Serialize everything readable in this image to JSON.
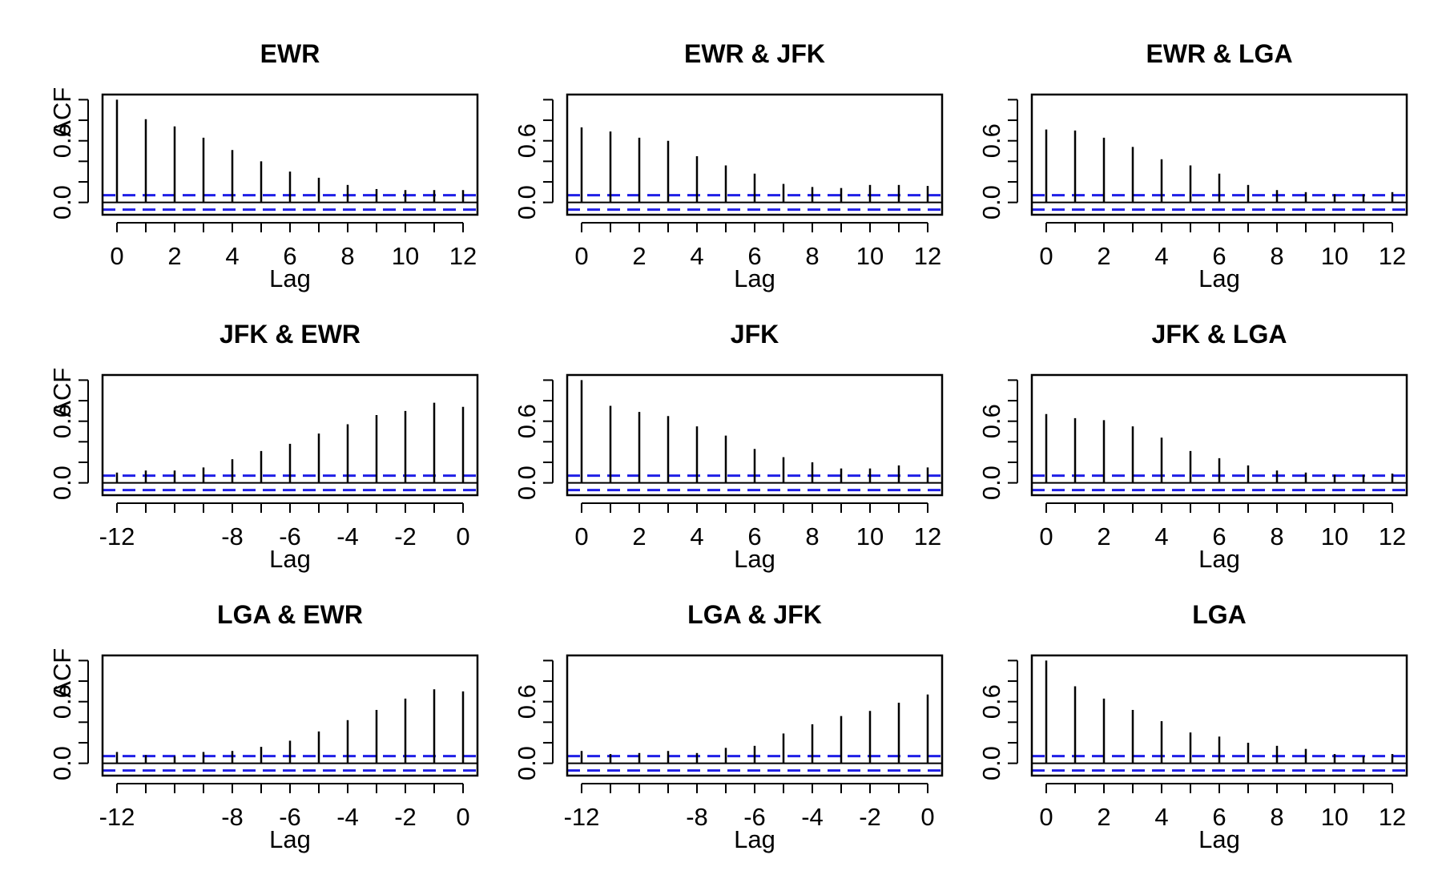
{
  "chart_data": [
    {
      "type": "bar",
      "title": "EWR",
      "xlabel": "Lag",
      "ylabel": "ACF",
      "x": [
        0,
        1,
        2,
        3,
        4,
        5,
        6,
        7,
        8,
        9,
        10,
        11,
        12
      ],
      "values": [
        1.0,
        0.81,
        0.74,
        0.63,
        0.51,
        0.4,
        0.3,
        0.24,
        0.17,
        0.13,
        0.12,
        0.12,
        0.12
      ],
      "xticks": [
        "0",
        "2",
        "4",
        "6",
        "8",
        "10",
        "12"
      ],
      "xtick_values": [
        0,
        2,
        4,
        6,
        8,
        10,
        12
      ],
      "xlim": [
        -0.5,
        12.5
      ],
      "yticks": [
        "0.0",
        "0.6"
      ],
      "ylim": [
        -0.12,
        1.05
      ],
      "ci": 0.07
    },
    {
      "type": "bar",
      "title": "EWR & JFK",
      "xlabel": "Lag",
      "ylabel": "",
      "x": [
        0,
        1,
        2,
        3,
        4,
        5,
        6,
        7,
        8,
        9,
        10,
        11,
        12
      ],
      "values": [
        0.73,
        0.69,
        0.63,
        0.6,
        0.45,
        0.36,
        0.28,
        0.18,
        0.15,
        0.14,
        0.17,
        0.17,
        0.16
      ],
      "xticks": [
        "0",
        "2",
        "4",
        "6",
        "8",
        "10",
        "12"
      ],
      "xtick_values": [
        0,
        2,
        4,
        6,
        8,
        10,
        12
      ],
      "xlim": [
        -0.5,
        12.5
      ],
      "yticks": [
        "0.0",
        "0.6"
      ],
      "ylim": [
        -0.12,
        1.05
      ],
      "ci": 0.07
    },
    {
      "type": "bar",
      "title": "EWR & LGA",
      "xlabel": "Lag",
      "ylabel": "",
      "x": [
        0,
        1,
        2,
        3,
        4,
        5,
        6,
        7,
        8,
        9,
        10,
        11,
        12
      ],
      "values": [
        0.71,
        0.7,
        0.63,
        0.54,
        0.42,
        0.36,
        0.28,
        0.17,
        0.12,
        0.1,
        0.08,
        0.08,
        0.1
      ],
      "xticks": [
        "0",
        "2",
        "4",
        "6",
        "8",
        "10",
        "12"
      ],
      "xtick_values": [
        0,
        2,
        4,
        6,
        8,
        10,
        12
      ],
      "xlim": [
        -0.5,
        12.5
      ],
      "yticks": [
        "0.0",
        "0.6"
      ],
      "ylim": [
        -0.12,
        1.05
      ],
      "ci": 0.07
    },
    {
      "type": "bar",
      "title": "JFK & EWR",
      "xlabel": "Lag",
      "ylabel": "ACF",
      "x": [
        -12,
        -11,
        -10,
        -9,
        -8,
        -7,
        -6,
        -5,
        -4,
        -3,
        -2,
        -1,
        0
      ],
      "values": [
        0.1,
        0.12,
        0.12,
        0.15,
        0.23,
        0.31,
        0.38,
        0.48,
        0.57,
        0.66,
        0.7,
        0.78,
        0.74
      ],
      "xticks": [
        "-12",
        "-8",
        "-6",
        "-4",
        "-2",
        "0"
      ],
      "xtick_values": [
        -12,
        -8,
        -6,
        -4,
        -2,
        0
      ],
      "xlim": [
        -12.5,
        0.5
      ],
      "yticks": [
        "0.0",
        "0.6"
      ],
      "ylim": [
        -0.12,
        1.05
      ],
      "ci": 0.07
    },
    {
      "type": "bar",
      "title": "JFK",
      "xlabel": "Lag",
      "ylabel": "",
      "x": [
        0,
        1,
        2,
        3,
        4,
        5,
        6,
        7,
        8,
        9,
        10,
        11,
        12
      ],
      "values": [
        1.0,
        0.75,
        0.69,
        0.65,
        0.55,
        0.46,
        0.33,
        0.25,
        0.2,
        0.14,
        0.14,
        0.17,
        0.15
      ],
      "xticks": [
        "0",
        "2",
        "4",
        "6",
        "8",
        "10",
        "12"
      ],
      "xtick_values": [
        0,
        2,
        4,
        6,
        8,
        10,
        12
      ],
      "xlim": [
        -0.5,
        12.5
      ],
      "yticks": [
        "0.0",
        "0.6"
      ],
      "ylim": [
        -0.12,
        1.05
      ],
      "ci": 0.07
    },
    {
      "type": "bar",
      "title": "JFK & LGA",
      "xlabel": "Lag",
      "ylabel": "",
      "x": [
        0,
        1,
        2,
        3,
        4,
        5,
        6,
        7,
        8,
        9,
        10,
        11,
        12
      ],
      "values": [
        0.67,
        0.63,
        0.61,
        0.55,
        0.44,
        0.31,
        0.24,
        0.17,
        0.12,
        0.1,
        0.08,
        0.08,
        0.09
      ],
      "xticks": [
        "0",
        "2",
        "4",
        "6",
        "8",
        "10",
        "12"
      ],
      "xtick_values": [
        0,
        2,
        4,
        6,
        8,
        10,
        12
      ],
      "xlim": [
        -0.5,
        12.5
      ],
      "yticks": [
        "0.0",
        "0.6"
      ],
      "ylim": [
        -0.12,
        1.05
      ],
      "ci": 0.07
    },
    {
      "type": "bar",
      "title": "LGA & EWR",
      "xlabel": "Lag",
      "ylabel": "ACF",
      "x": [
        -12,
        -11,
        -10,
        -9,
        -8,
        -7,
        -6,
        -5,
        -4,
        -3,
        -2,
        -1,
        0
      ],
      "values": [
        0.11,
        0.08,
        0.07,
        0.11,
        0.12,
        0.16,
        0.22,
        0.31,
        0.42,
        0.52,
        0.63,
        0.72,
        0.7
      ],
      "xticks": [
        "-12",
        "-8",
        "-6",
        "-4",
        "-2",
        "0"
      ],
      "xtick_values": [
        -12,
        -8,
        -6,
        -4,
        -2,
        0
      ],
      "xlim": [
        -12.5,
        0.5
      ],
      "yticks": [
        "0.0",
        "0.6"
      ],
      "ylim": [
        -0.12,
        1.05
      ],
      "ci": 0.07
    },
    {
      "type": "bar",
      "title": "LGA & JFK",
      "xlabel": "Lag",
      "ylabel": "",
      "x": [
        -12,
        -11,
        -10,
        -9,
        -8,
        -7,
        -6,
        -5,
        -4,
        -3,
        -2,
        -1,
        0
      ],
      "values": [
        0.12,
        0.09,
        0.1,
        0.12,
        0.1,
        0.15,
        0.17,
        0.29,
        0.38,
        0.46,
        0.51,
        0.59,
        0.67
      ],
      "xticks": [
        "-12",
        "-8",
        "-6",
        "-4",
        "-2",
        "0"
      ],
      "xtick_values": [
        -12,
        -8,
        -6,
        -4,
        -2,
        0
      ],
      "xlim": [
        -12.5,
        0.5
      ],
      "yticks": [
        "0.0",
        "0.6"
      ],
      "ylim": [
        -0.12,
        1.05
      ],
      "ci": 0.07
    },
    {
      "type": "bar",
      "title": "LGA",
      "xlabel": "Lag",
      "ylabel": "",
      "x": [
        0,
        1,
        2,
        3,
        4,
        5,
        6,
        7,
        8,
        9,
        10,
        11,
        12
      ],
      "values": [
        1.0,
        0.75,
        0.63,
        0.52,
        0.41,
        0.3,
        0.26,
        0.2,
        0.17,
        0.14,
        0.09,
        0.07,
        0.09
      ],
      "xticks": [
        "0",
        "2",
        "4",
        "6",
        "8",
        "10",
        "12"
      ],
      "xtick_values": [
        0,
        2,
        4,
        6,
        8,
        10,
        12
      ],
      "xlim": [
        -0.5,
        12.5
      ],
      "yticks": [
        "0.0",
        "0.6"
      ],
      "ylim": [
        -0.12,
        1.05
      ],
      "ci": 0.07
    }
  ],
  "colors": {
    "spike": "#000000",
    "ci": "#1f1fe6",
    "zero_line": "#000000"
  }
}
